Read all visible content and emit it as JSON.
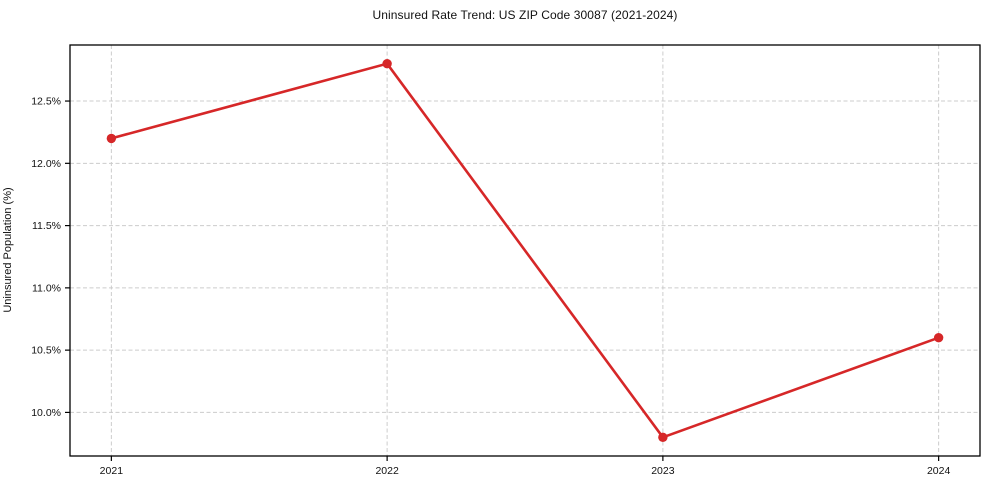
{
  "chart_data": {
    "type": "line",
    "title": "Uninsured Rate Trend: US ZIP Code 30087 (2021-2024)",
    "xlabel": "",
    "ylabel": "Uninsured Population (%)",
    "x": [
      2021,
      2022,
      2023,
      2024
    ],
    "x_tick_labels": [
      "2021",
      "2022",
      "2023",
      "2024"
    ],
    "series": [
      {
        "name": "uninsured-rate",
        "values": [
          12.2,
          12.8,
          9.8,
          10.6
        ]
      }
    ],
    "y_ticks": [
      10.0,
      10.5,
      11.0,
      11.5,
      12.0,
      12.5
    ],
    "y_tick_labels": [
      "10.0%",
      "10.5%",
      "11.0%",
      "11.5%",
      "12.0%",
      "12.5%"
    ],
    "xlim": [
      2020.85,
      2024.15
    ],
    "ylim": [
      9.65,
      12.95
    ],
    "grid": true,
    "grid_style": "dashed",
    "legend": "none",
    "colors": {
      "line": "#d62728",
      "marker": "#d62728",
      "grid": "#cccccc",
      "axis": "#000000",
      "tick_text": "#111111",
      "background": "#ffffff"
    }
  }
}
